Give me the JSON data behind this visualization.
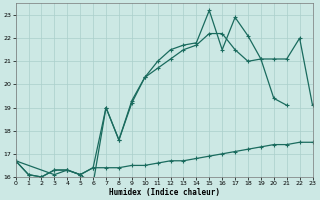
{
  "xlabel": "Humidex (Indice chaleur)",
  "bg_color": "#cce8e4",
  "grid_color": "#aacfcb",
  "line_color": "#1a6b5e",
  "xlim": [
    0,
    23
  ],
  "ylim": [
    16,
    23.5
  ],
  "yticks": [
    16,
    17,
    18,
    19,
    20,
    21,
    22,
    23
  ],
  "xticks": [
    0,
    1,
    2,
    3,
    4,
    5,
    6,
    7,
    8,
    9,
    10,
    11,
    12,
    13,
    14,
    15,
    16,
    17,
    18,
    19,
    20,
    21,
    22,
    23
  ],
  "series1_x": [
    0,
    1,
    2,
    3,
    4,
    5,
    6,
    7,
    8,
    9,
    10,
    11,
    12,
    13,
    14,
    15,
    16,
    17,
    18,
    19,
    20,
    21,
    22,
    23
  ],
  "series1_y": [
    16.7,
    16.1,
    16.0,
    16.3,
    16.3,
    16.1,
    16.4,
    16.4,
    16.4,
    16.5,
    16.5,
    16.6,
    16.7,
    16.7,
    16.8,
    16.9,
    17.0,
    17.1,
    17.2,
    17.3,
    17.4,
    17.4,
    17.5,
    17.5
  ],
  "series2_x": [
    0,
    1,
    2,
    3,
    4,
    5,
    6,
    7,
    8,
    9,
    10,
    11,
    12,
    13,
    14,
    15,
    16,
    17,
    18,
    19,
    20,
    21
  ],
  "series2_y": [
    16.7,
    16.1,
    16.0,
    16.3,
    16.3,
    16.1,
    16.4,
    19.0,
    17.6,
    19.3,
    20.3,
    20.7,
    21.1,
    21.5,
    21.7,
    22.2,
    22.2,
    21.5,
    21.0,
    21.1,
    19.4,
    19.1
  ],
  "series3_x": [
    0,
    3,
    4,
    5,
    6,
    7,
    8,
    9,
    10,
    11,
    12,
    13,
    14,
    15,
    16,
    17,
    18,
    19,
    20,
    21,
    22,
    23
  ],
  "series3_y": [
    16.7,
    16.1,
    16.3,
    16.1,
    15.7,
    19.0,
    17.6,
    19.2,
    20.3,
    21.0,
    21.5,
    21.7,
    21.8,
    23.2,
    21.5,
    22.9,
    22.1,
    21.1,
    21.1,
    21.1,
    22.0,
    19.1
  ]
}
